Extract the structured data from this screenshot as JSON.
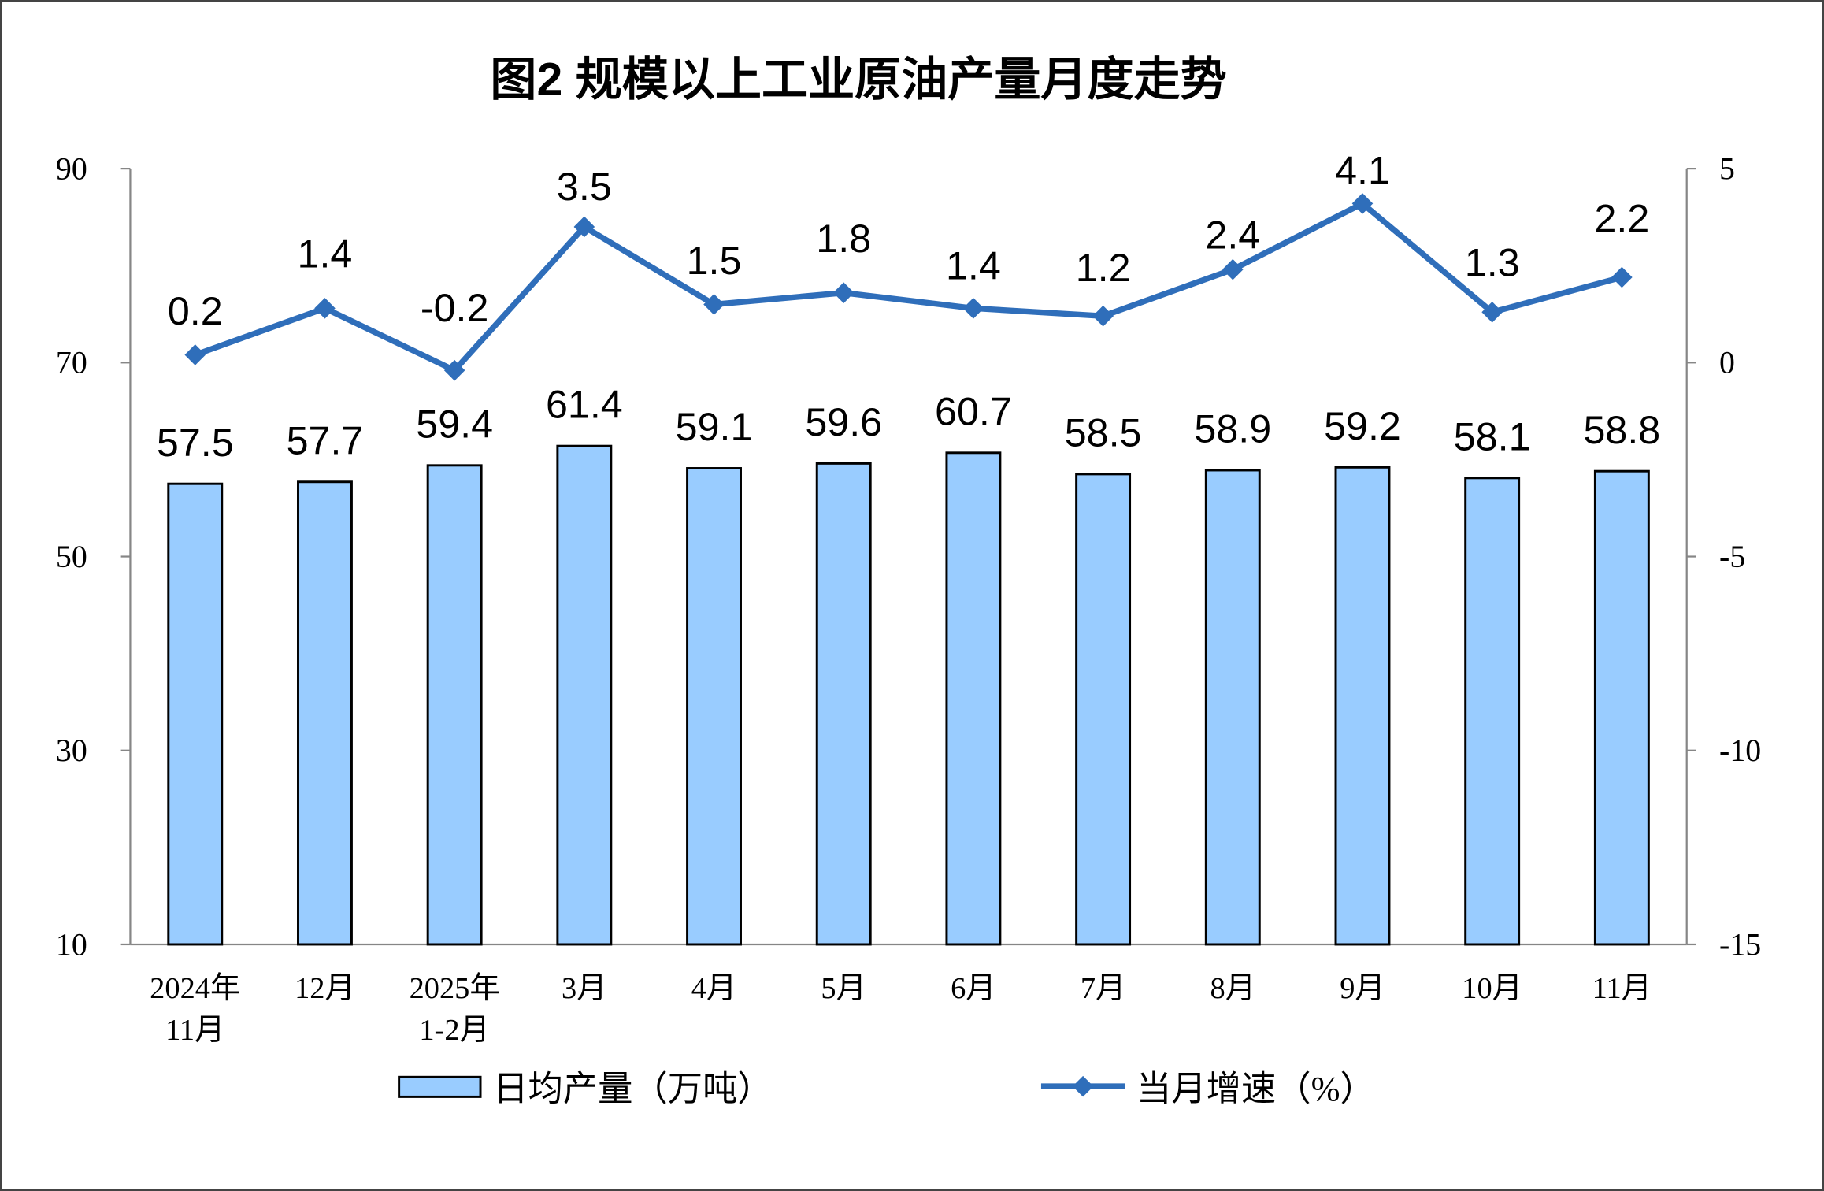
{
  "chart_data": {
    "type": "bar",
    "title": "图2 规模以上工业原油产量月度走势",
    "categories": [
      [
        "2024年",
        "11月"
      ],
      [
        "12月"
      ],
      [
        "2025年",
        "1-2月"
      ],
      [
        "3月"
      ],
      [
        "4月"
      ],
      [
        "5月"
      ],
      [
        "6月"
      ],
      [
        "7月"
      ],
      [
        "8月"
      ],
      [
        "9月"
      ],
      [
        "10月"
      ],
      [
        "11月"
      ]
    ],
    "series": [
      {
        "name": "日均产量（万吨）",
        "type": "bar",
        "axis": "left",
        "color": "#99CCFF",
        "values": [
          57.5,
          57.7,
          59.4,
          61.4,
          59.1,
          59.6,
          60.7,
          58.5,
          58.9,
          59.2,
          58.1,
          58.8
        ]
      },
      {
        "name": "当月增速（%）",
        "type": "line",
        "axis": "right",
        "color": "#2F6EBA",
        "marker": "diamond",
        "values": [
          0.2,
          1.4,
          -0.2,
          3.5,
          1.5,
          1.8,
          1.4,
          1.2,
          2.4,
          4.1,
          1.3,
          2.2
        ]
      }
    ],
    "y_left": {
      "ylim": [
        10,
        90
      ],
      "ticks": [
        90,
        70,
        50,
        30,
        10
      ]
    },
    "y_right": {
      "ylim": [
        -15,
        5
      ],
      "ticks": [
        5,
        0,
        -5,
        -10,
        -15
      ]
    },
    "xlabel": "",
    "ylabel": "",
    "grid": false,
    "legend": "bottom",
    "data_labels": true
  }
}
